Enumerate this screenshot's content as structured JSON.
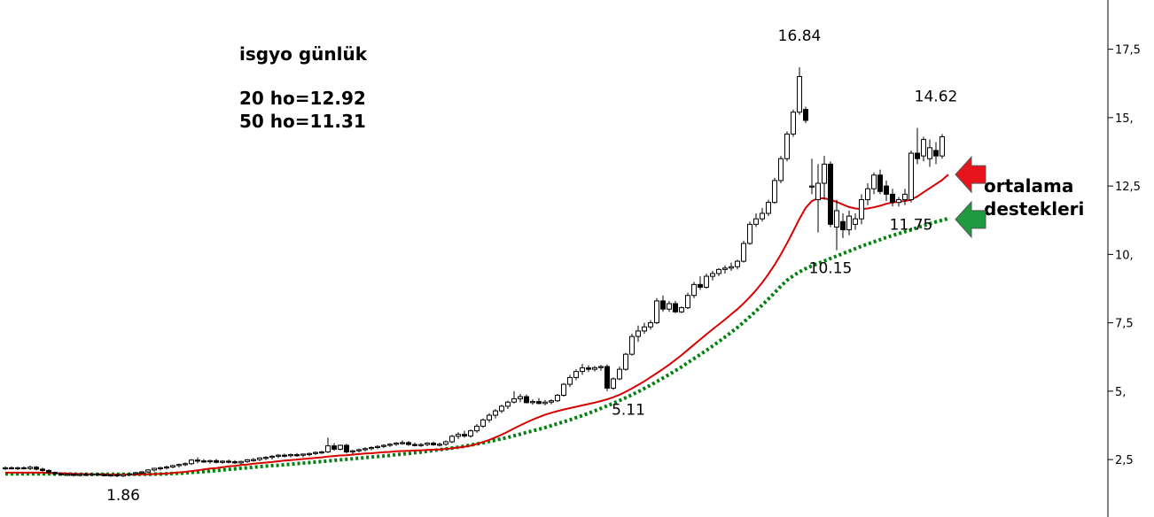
{
  "chart_data": {
    "type": "candlestick",
    "title_lines": [
      "isgyo günlük",
      "20 ho=12.92",
      "50 ho=11.31"
    ],
    "side_label_lines": [
      "ortalama",
      "destekleri"
    ],
    "y_ticks": [
      "2,5",
      "5,",
      "7,5",
      "10,",
      "12,5",
      "15,",
      "17,5"
    ],
    "y_tick_values": [
      2.5,
      5,
      7.5,
      10,
      12.5,
      15,
      17.5
    ],
    "ylim": [
      0.4,
      19.3
    ],
    "annotations": [
      {
        "text": "16.84",
        "bar": 128,
        "value": 16.84,
        "place": "above"
      },
      {
        "text": "14.62",
        "bar": 150,
        "value": 14.62,
        "place": "above"
      },
      {
        "text": "11.75",
        "bar": 146,
        "value": 11.75,
        "place": "below"
      },
      {
        "text": "10.15",
        "bar": 133,
        "value": 10.15,
        "place": "below"
      },
      {
        "text": "5.11",
        "bar": 99,
        "value": 5.11,
        "place": "right"
      },
      {
        "text": "1.86",
        "bar": 19,
        "value": 1.86,
        "place": "below"
      }
    ],
    "ohlc": [
      [
        2.2,
        2.25,
        2.12,
        2.2
      ],
      [
        2.2,
        2.25,
        2.14,
        2.18
      ],
      [
        2.18,
        2.24,
        2.12,
        2.2
      ],
      [
        2.2,
        2.25,
        2.14,
        2.17
      ],
      [
        2.17,
        2.28,
        2.12,
        2.22
      ],
      [
        2.22,
        2.27,
        2.1,
        2.15
      ],
      [
        2.15,
        2.2,
        2.05,
        2.1
      ],
      [
        2.1,
        2.15,
        1.98,
        2.03
      ],
      [
        2.03,
        2.06,
        1.92,
        1.98
      ],
      [
        1.98,
        2.02,
        1.9,
        1.95
      ],
      [
        1.95,
        2.01,
        1.9,
        1.96
      ],
      [
        1.96,
        2.0,
        1.88,
        1.93
      ],
      [
        1.93,
        1.98,
        1.88,
        1.96
      ],
      [
        1.96,
        2.02,
        1.9,
        1.94
      ],
      [
        1.94,
        2.0,
        1.89,
        1.97
      ],
      [
        1.97,
        2.02,
        1.91,
        1.95
      ],
      [
        1.95,
        2.0,
        1.88,
        1.92
      ],
      [
        1.92,
        1.97,
        1.87,
        1.94
      ],
      [
        1.94,
        1.99,
        1.86,
        1.9
      ],
      [
        1.9,
        1.97,
        1.86,
        1.95
      ],
      [
        1.95,
        2.02,
        1.9,
        1.98
      ],
      [
        1.98,
        2.05,
        1.93,
        2.02
      ],
      [
        2.02,
        2.08,
        1.97,
        2.05
      ],
      [
        2.05,
        2.15,
        2.0,
        2.12
      ],
      [
        2.12,
        2.2,
        2.06,
        2.18
      ],
      [
        2.18,
        2.24,
        2.1,
        2.2
      ],
      [
        2.2,
        2.28,
        2.14,
        2.23
      ],
      [
        2.23,
        2.3,
        2.18,
        2.28
      ],
      [
        2.28,
        2.35,
        2.2,
        2.32
      ],
      [
        2.32,
        2.4,
        2.26,
        2.35
      ],
      [
        2.35,
        2.52,
        2.3,
        2.48
      ],
      [
        2.48,
        2.58,
        2.36,
        2.45
      ],
      [
        2.45,
        2.52,
        2.38,
        2.42
      ],
      [
        2.42,
        2.5,
        2.35,
        2.46
      ],
      [
        2.46,
        2.52,
        2.36,
        2.4
      ],
      [
        2.4,
        2.48,
        2.34,
        2.44
      ],
      [
        2.44,
        2.5,
        2.36,
        2.42
      ],
      [
        2.42,
        2.48,
        2.34,
        2.38
      ],
      [
        2.38,
        2.46,
        2.32,
        2.43
      ],
      [
        2.43,
        2.52,
        2.38,
        2.49
      ],
      [
        2.49,
        2.56,
        2.42,
        2.5
      ],
      [
        2.5,
        2.58,
        2.44,
        2.56
      ],
      [
        2.56,
        2.62,
        2.48,
        2.58
      ],
      [
        2.58,
        2.66,
        2.5,
        2.62
      ],
      [
        2.62,
        2.7,
        2.55,
        2.66
      ],
      [
        2.66,
        2.72,
        2.58,
        2.65
      ],
      [
        2.65,
        2.72,
        2.58,
        2.68
      ],
      [
        2.68,
        2.74,
        2.6,
        2.66
      ],
      [
        2.66,
        2.72,
        2.58,
        2.7
      ],
      [
        2.7,
        2.76,
        2.62,
        2.72
      ],
      [
        2.72,
        2.8,
        2.66,
        2.76
      ],
      [
        2.76,
        2.82,
        2.7,
        2.78
      ],
      [
        2.78,
        3.3,
        2.74,
        3.0
      ],
      [
        3.0,
        3.1,
        2.82,
        2.88
      ],
      [
        2.88,
        3.05,
        2.84,
        3.02
      ],
      [
        3.02,
        3.08,
        2.72,
        2.78
      ],
      [
        2.78,
        2.86,
        2.7,
        2.82
      ],
      [
        2.82,
        2.9,
        2.76,
        2.86
      ],
      [
        2.86,
        2.95,
        2.8,
        2.9
      ],
      [
        2.9,
        2.98,
        2.84,
        2.94
      ],
      [
        2.94,
        3.02,
        2.88,
        2.98
      ],
      [
        2.98,
        3.06,
        2.92,
        3.02
      ],
      [
        3.02,
        3.1,
        2.96,
        3.06
      ],
      [
        3.06,
        3.14,
        3.0,
        3.1
      ],
      [
        3.1,
        3.2,
        3.04,
        3.12
      ],
      [
        3.12,
        3.18,
        3.0,
        3.05
      ],
      [
        3.05,
        3.12,
        2.98,
        3.02
      ],
      [
        3.02,
        3.1,
        2.96,
        3.05
      ],
      [
        3.05,
        3.14,
        2.99,
        3.1
      ],
      [
        3.1,
        3.16,
        3.0,
        3.04
      ],
      [
        3.04,
        3.12,
        2.98,
        3.06
      ],
      [
        3.06,
        3.2,
        3.0,
        3.15
      ],
      [
        3.15,
        3.4,
        3.1,
        3.35
      ],
      [
        3.35,
        3.5,
        3.25,
        3.42
      ],
      [
        3.42,
        3.55,
        3.3,
        3.36
      ],
      [
        3.36,
        3.6,
        3.3,
        3.55
      ],
      [
        3.55,
        3.8,
        3.48,
        3.72
      ],
      [
        3.72,
        4.0,
        3.66,
        3.95
      ],
      [
        3.95,
        4.2,
        3.85,
        4.12
      ],
      [
        4.12,
        4.35,
        4.0,
        4.28
      ],
      [
        4.28,
        4.5,
        4.2,
        4.45
      ],
      [
        4.45,
        4.65,
        4.35,
        4.6
      ],
      [
        4.6,
        5.0,
        4.55,
        4.72
      ],
      [
        4.72,
        4.9,
        4.6,
        4.8
      ],
      [
        4.8,
        4.88,
        4.55,
        4.58
      ],
      [
        4.58,
        4.7,
        4.5,
        4.62
      ],
      [
        4.62,
        4.75,
        4.52,
        4.55
      ],
      [
        4.55,
        4.68,
        4.48,
        4.6
      ],
      [
        4.6,
        4.7,
        4.52,
        4.65
      ],
      [
        4.65,
        4.9,
        4.6,
        4.85
      ],
      [
        4.85,
        5.3,
        4.8,
        5.25
      ],
      [
        5.25,
        5.6,
        5.15,
        5.5
      ],
      [
        5.5,
        5.8,
        5.4,
        5.72
      ],
      [
        5.72,
        6.0,
        5.6,
        5.85
      ],
      [
        5.85,
        5.95,
        5.7,
        5.8
      ],
      [
        5.8,
        5.92,
        5.72,
        5.86
      ],
      [
        5.86,
        5.95,
        5.75,
        5.9
      ],
      [
        5.9,
        5.98,
        5.0,
        5.11
      ],
      [
        5.11,
        5.5,
        5.05,
        5.45
      ],
      [
        5.45,
        5.9,
        5.4,
        5.8
      ],
      [
        5.8,
        6.4,
        5.75,
        6.35
      ],
      [
        6.35,
        7.1,
        6.3,
        7.0
      ],
      [
        7.0,
        7.4,
        6.8,
        7.2
      ],
      [
        7.2,
        7.5,
        7.1,
        7.35
      ],
      [
        7.35,
        7.6,
        7.25,
        7.5
      ],
      [
        7.5,
        8.4,
        7.45,
        8.3
      ],
      [
        8.3,
        8.5,
        7.9,
        8.0
      ],
      [
        8.0,
        8.3,
        7.9,
        8.2
      ],
      [
        8.2,
        8.3,
        7.85,
        7.9
      ],
      [
        7.9,
        8.1,
        7.85,
        8.05
      ],
      [
        8.05,
        8.6,
        8.0,
        8.5
      ],
      [
        8.5,
        9.0,
        8.4,
        8.9
      ],
      [
        8.9,
        9.2,
        8.7,
        8.8
      ],
      [
        8.8,
        9.3,
        8.75,
        9.2
      ],
      [
        9.2,
        9.4,
        9.05,
        9.3
      ],
      [
        9.3,
        9.5,
        9.2,
        9.45
      ],
      [
        9.45,
        9.6,
        9.3,
        9.5
      ],
      [
        9.5,
        9.7,
        9.4,
        9.55
      ],
      [
        9.55,
        9.8,
        9.45,
        9.75
      ],
      [
        9.75,
        10.5,
        9.7,
        10.4
      ],
      [
        10.4,
        11.2,
        10.35,
        11.1
      ],
      [
        11.1,
        11.5,
        11.0,
        11.3
      ],
      [
        11.3,
        11.7,
        11.2,
        11.5
      ],
      [
        11.5,
        12.0,
        11.4,
        11.9
      ],
      [
        11.9,
        12.8,
        11.85,
        12.7
      ],
      [
        12.7,
        13.6,
        12.6,
        13.5
      ],
      [
        13.5,
        14.5,
        13.4,
        14.4
      ],
      [
        14.4,
        15.3,
        14.3,
        15.2
      ],
      [
        15.2,
        16.84,
        15.1,
        16.5
      ],
      [
        15.3,
        15.4,
        14.8,
        14.9
      ],
      [
        12.5,
        13.5,
        12.2,
        12.5
      ],
      [
        12.0,
        13.3,
        10.8,
        12.6
      ],
      [
        12.6,
        13.6,
        12.0,
        13.3
      ],
      [
        13.3,
        13.4,
        11.0,
        11.1
      ],
      [
        11.0,
        12.0,
        10.15,
        11.6
      ],
      [
        11.2,
        11.5,
        10.6,
        10.9
      ],
      [
        10.9,
        11.6,
        10.7,
        11.4
      ],
      [
        11.1,
        11.5,
        10.9,
        11.3
      ],
      [
        11.3,
        12.2,
        11.1,
        12.0
      ],
      [
        12.0,
        12.6,
        11.8,
        12.4
      ],
      [
        12.4,
        13.0,
        12.2,
        12.9
      ],
      [
        12.9,
        13.1,
        12.2,
        12.3
      ],
      [
        12.5,
        12.7,
        11.95,
        12.2
      ],
      [
        12.2,
        12.4,
        11.75,
        11.9
      ],
      [
        11.9,
        12.1,
        11.75,
        12.0
      ],
      [
        12.0,
        12.4,
        11.8,
        12.2
      ],
      [
        12.0,
        13.8,
        11.9,
        13.7
      ],
      [
        13.7,
        14.62,
        13.3,
        13.5
      ],
      [
        13.6,
        14.3,
        13.4,
        14.2
      ],
      [
        13.5,
        14.2,
        13.2,
        13.9
      ],
      [
        13.8,
        14.1,
        13.3,
        13.6
      ],
      [
        13.6,
        14.4,
        13.5,
        14.3
      ]
    ],
    "ma20": [
      2.02,
      2.02,
      2.02,
      2.02,
      2.02,
      2.02,
      2.02,
      2.01,
      2.0,
      2.0,
      1.99,
      1.98,
      1.97,
      1.97,
      1.96,
      1.96,
      1.96,
      1.95,
      1.95,
      1.95,
      1.95,
      1.95,
      1.96,
      1.96,
      1.97,
      1.98,
      1.99,
      2.01,
      2.03,
      2.05,
      2.08,
      2.11,
      2.14,
      2.17,
      2.19,
      2.22,
      2.25,
      2.27,
      2.3,
      2.32,
      2.35,
      2.37,
      2.39,
      2.41,
      2.44,
      2.46,
      2.48,
      2.5,
      2.52,
      2.54,
      2.56,
      2.58,
      2.61,
      2.63,
      2.65,
      2.66,
      2.68,
      2.7,
      2.72,
      2.73,
      2.75,
      2.77,
      2.78,
      2.8,
      2.81,
      2.82,
      2.83,
      2.84,
      2.85,
      2.86,
      2.87,
      2.89,
      2.91,
      2.94,
      2.97,
      3.01,
      3.07,
      3.14,
      3.22,
      3.31,
      3.41,
      3.52,
      3.64,
      3.75,
      3.86,
      3.96,
      4.05,
      4.14,
      4.21,
      4.27,
      4.33,
      4.38,
      4.43,
      4.48,
      4.53,
      4.58,
      4.64,
      4.7,
      4.78,
      4.87,
      4.98,
      5.1,
      5.23,
      5.36,
      5.51,
      5.66,
      5.81,
      5.97,
      6.14,
      6.32,
      6.51,
      6.7,
      6.89,
      7.08,
      7.26,
      7.44,
      7.62,
      7.81,
      8.0,
      8.21,
      8.44,
      8.69,
      8.97,
      9.28,
      9.62,
      10.0,
      10.41,
      10.85,
      11.3,
      11.7,
      11.95,
      12.05,
      12.05,
      12.0,
      11.92,
      11.82,
      11.73,
      11.68,
      11.66,
      11.68,
      11.72,
      11.78,
      11.85,
      11.9,
      11.93,
      11.95,
      12.0,
      12.12,
      12.27,
      12.42,
      12.57,
      12.72,
      12.92
    ],
    "ma50": [
      1.98,
      1.98,
      1.98,
      1.98,
      1.98,
      1.98,
      1.98,
      1.98,
      1.97,
      1.97,
      1.97,
      1.97,
      1.96,
      1.96,
      1.96,
      1.96,
      1.96,
      1.96,
      1.96,
      1.96,
      1.96,
      1.96,
      1.96,
      1.96,
      1.97,
      1.97,
      1.98,
      1.99,
      2.0,
      2.01,
      2.03,
      2.04,
      2.06,
      2.08,
      2.1,
      2.12,
      2.14,
      2.16,
      2.18,
      2.2,
      2.22,
      2.24,
      2.26,
      2.28,
      2.29,
      2.31,
      2.33,
      2.35,
      2.37,
      2.39,
      2.41,
      2.43,
      2.45,
      2.47,
      2.49,
      2.51,
      2.53,
      2.55,
      2.57,
      2.59,
      2.61,
      2.63,
      2.65,
      2.68,
      2.7,
      2.72,
      2.75,
      2.77,
      2.8,
      2.83,
      2.86,
      2.89,
      2.92,
      2.95,
      2.99,
      3.03,
      3.07,
      3.11,
      3.16,
      3.21,
      3.26,
      3.31,
      3.37,
      3.43,
      3.49,
      3.55,
      3.61,
      3.67,
      3.74,
      3.81,
      3.88,
      3.95,
      4.03,
      4.11,
      4.19,
      4.28,
      4.37,
      4.46,
      4.56,
      4.66,
      4.76,
      4.87,
      4.98,
      5.1,
      5.22,
      5.35,
      5.48,
      5.61,
      5.75,
      5.89,
      6.04,
      6.19,
      6.34,
      6.49,
      6.65,
      6.81,
      6.98,
      7.15,
      7.33,
      7.52,
      7.72,
      7.93,
      8.15,
      8.37,
      8.6,
      8.84,
      9.05,
      9.22,
      9.36,
      9.48,
      9.58,
      9.67,
      9.76,
      9.85,
      9.94,
      10.03,
      10.12,
      10.21,
      10.3,
      10.38,
      10.46,
      10.54,
      10.62,
      10.69,
      10.76,
      10.83,
      10.9,
      10.98,
      11.05,
      11.12,
      11.19,
      11.25,
      11.31
    ],
    "colors": {
      "ma20": "#d80000",
      "ma50": "#00800f",
      "up_fill": "#ffffff",
      "down_fill": "#000000",
      "red_arrow": "#e8141c",
      "green_arrow": "#1e9b3e"
    },
    "grid": false,
    "y_axis_position": "right"
  }
}
